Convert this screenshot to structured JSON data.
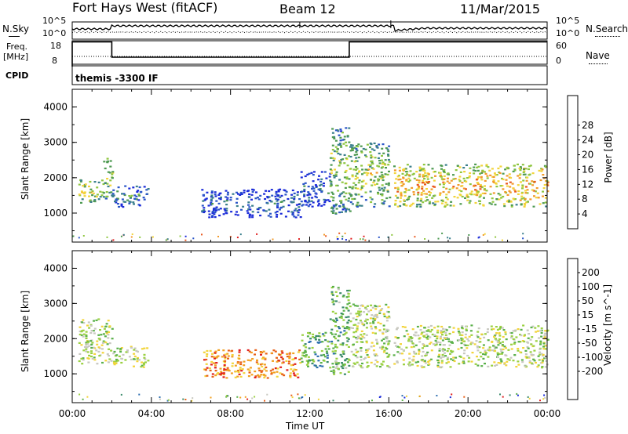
{
  "header": {
    "title": "Fort Hays West (fitACF)",
    "beam": "Beam 12",
    "date": "11/Mar/2015"
  },
  "status_panel": {
    "nsky_label": "N.Sky",
    "nsky_ticks": [
      "10^5",
      "10^0"
    ],
    "nsearch_label": "N.Search",
    "nsearch_ticks": [
      "10^5",
      "10^0"
    ],
    "freq_label": "Freq.",
    "freq_unit": "[MHz]",
    "freq_ticks": [
      "18",
      "8"
    ],
    "nave_label": "Nave",
    "nave_ticks": [
      "60",
      "0"
    ],
    "cpid_label": "CPID",
    "cpid_text": "themis -3300 IF"
  },
  "chart_data": [
    {
      "type": "heatmap",
      "name": "power",
      "ylabel": "Slant Range [km]",
      "yticks": [
        "1000",
        "2000",
        "3000",
        "4000"
      ],
      "ylim": [
        180,
        4500
      ],
      "xlim": [
        0,
        24
      ],
      "colorbar_label": "Power [dB]",
      "colorbar_ticks": [
        "4",
        "8",
        "12",
        "16",
        "20",
        "24",
        "28"
      ],
      "colorbar_colors": [
        "#1a2ad8",
        "#2b56c8",
        "#3a7f8c",
        "#4e9a52",
        "#8fc640",
        "#f2d43a",
        "#f29a2a",
        "#e9581f",
        "#e01e1e"
      ],
      "regions": [
        {
          "t0": 0.3,
          "t1": 1.5,
          "r0": 1300,
          "r1": 2000,
          "level": 0.45
        },
        {
          "t0": 1.5,
          "t1": 2.0,
          "r0": 1400,
          "r1": 2600,
          "level": 0.4
        },
        {
          "t0": 2.0,
          "t1": 3.8,
          "r0": 1200,
          "r1": 1800,
          "level": 0.2
        },
        {
          "t0": 6.5,
          "t1": 11.5,
          "r0": 900,
          "r1": 1700,
          "level": 0.08
        },
        {
          "t0": 11.5,
          "t1": 13.0,
          "r0": 1200,
          "r1": 2200,
          "level": 0.1
        },
        {
          "t0": 13.0,
          "t1": 14.0,
          "r0": 1000,
          "r1": 3500,
          "level": 0.35
        },
        {
          "t0": 14.0,
          "t1": 16.0,
          "r0": 1200,
          "r1": 3000,
          "level": 0.4
        },
        {
          "t0": 16.2,
          "t1": 24.0,
          "r0": 1200,
          "r1": 2400,
          "level": 0.55
        }
      ]
    },
    {
      "type": "heatmap",
      "name": "velocity",
      "ylabel": "Slant Range [km]",
      "xlabel": "Time UT",
      "xticks": [
        "00:00",
        "04:00",
        "08:00",
        "12:00",
        "16:00",
        "20:00",
        "00:00"
      ],
      "yticks": [
        "1000",
        "2000",
        "3000",
        "4000"
      ],
      "ylim": [
        180,
        4500
      ],
      "xlim": [
        0,
        24
      ],
      "colorbar_label": "Velocity [m s^-1]",
      "colorbar_ticks": [
        "200",
        "100",
        "50",
        "15",
        "-15",
        "-50",
        "-100",
        "-200"
      ],
      "colorbar_colors": [
        "#1a2ad8",
        "#2e6fb0",
        "#3a8a6a",
        "#5ab04a",
        "#9ad040",
        "#c8c8c0",
        "#f2d43a",
        "#f2a020",
        "#e86018",
        "#e01e1e"
      ],
      "regions": [
        {
          "t0": 0.3,
          "t1": 2.0,
          "r0": 1300,
          "r1": 2600,
          "level": 0.5
        },
        {
          "t0": 2.0,
          "t1": 3.8,
          "r0": 1200,
          "r1": 1800,
          "level": 0.5
        },
        {
          "t0": 6.5,
          "t1": 11.5,
          "r0": 900,
          "r1": 1700,
          "level": 0.8
        },
        {
          "t0": 11.5,
          "t1": 13.0,
          "r0": 1200,
          "r1": 2200,
          "level": 0.3
        },
        {
          "t0": 13.0,
          "t1": 14.0,
          "r0": 1000,
          "r1": 3500,
          "level": 0.35
        },
        {
          "t0": 14.0,
          "t1": 16.0,
          "r0": 1200,
          "r1": 3000,
          "level": 0.5
        },
        {
          "t0": 16.2,
          "t1": 24.0,
          "r0": 1200,
          "r1": 2400,
          "level": 0.5
        }
      ]
    }
  ]
}
